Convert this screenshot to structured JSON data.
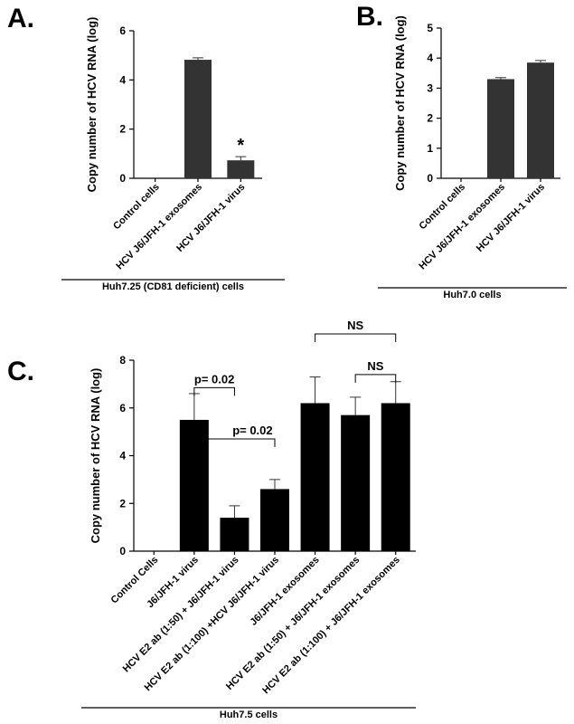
{
  "chart_data": [
    {
      "panel": "A.",
      "type": "bar",
      "ylabel": "Copy number of HCV RNA (log)",
      "ylim": [
        0,
        6
      ],
      "yticks": [
        0,
        2,
        4,
        6
      ],
      "categories": [
        "Control cells",
        "HCV J6/JFH-1 exosomes",
        "HCV J6/JFH-1 virus"
      ],
      "values": [
        0,
        4.82,
        0.73
      ],
      "errors": [
        0,
        0.08,
        0.15
      ],
      "bar_color": "#333333",
      "group_label": "Huh7.25 (CD81 deficient) cells",
      "annotations": [
        {
          "category_index": 2,
          "text": "*"
        }
      ]
    },
    {
      "panel": "B.",
      "type": "bar",
      "ylabel": "Copy number of HCV RNA (log)",
      "ylim": [
        0,
        5
      ],
      "yticks": [
        0,
        1,
        2,
        3,
        4,
        5
      ],
      "categories": [
        "Control cells",
        "HCV J6/JFH-1 exosomes",
        "HCV J6/JFH-1 virus"
      ],
      "values": [
        0,
        3.3,
        3.85
      ],
      "errors": [
        0,
        0.05,
        0.07
      ],
      "bar_color": "#333333",
      "group_label": "Huh7.0 cells",
      "annotations": []
    },
    {
      "panel": "C.",
      "type": "bar",
      "ylabel": "Copy number of HCV RNA (log)",
      "ylim": [
        0,
        8
      ],
      "yticks": [
        0,
        2,
        4,
        6,
        8
      ],
      "categories": [
        "Control Cells",
        "J6/JFH-1 virus",
        "HCV E2 ab (1:50) + J6/JFH-1 virus",
        "HCV E2 ab (1:100) +HCV J6/JFH-1 virus",
        "J6/JFH-1 exosomes",
        "HCV E2 ab (1:50) + J6/JFH-1 exosomes",
        "HCV E2 ab (1:100) + J6/JFH-1 exosomes"
      ],
      "values": [
        0,
        5.5,
        1.4,
        2.6,
        6.2,
        5.7,
        6.2
      ],
      "errors": [
        0,
        1.1,
        0.5,
        0.4,
        1.1,
        0.75,
        0.9
      ],
      "bar_color": "#000000",
      "group_label": "Huh7.5 cells",
      "brackets": [
        {
          "from": 1,
          "to": 2,
          "text": "p= 0.02",
          "level": 6.85
        },
        {
          "from": 1,
          "to": 3,
          "text": "p= 0.02",
          "level": 4.7
        },
        {
          "from": 4,
          "to": 6,
          "text": "NS",
          "level": 9.1
        },
        {
          "from": 5,
          "to": 6,
          "text": "NS",
          "level": 7.4
        }
      ]
    }
  ]
}
